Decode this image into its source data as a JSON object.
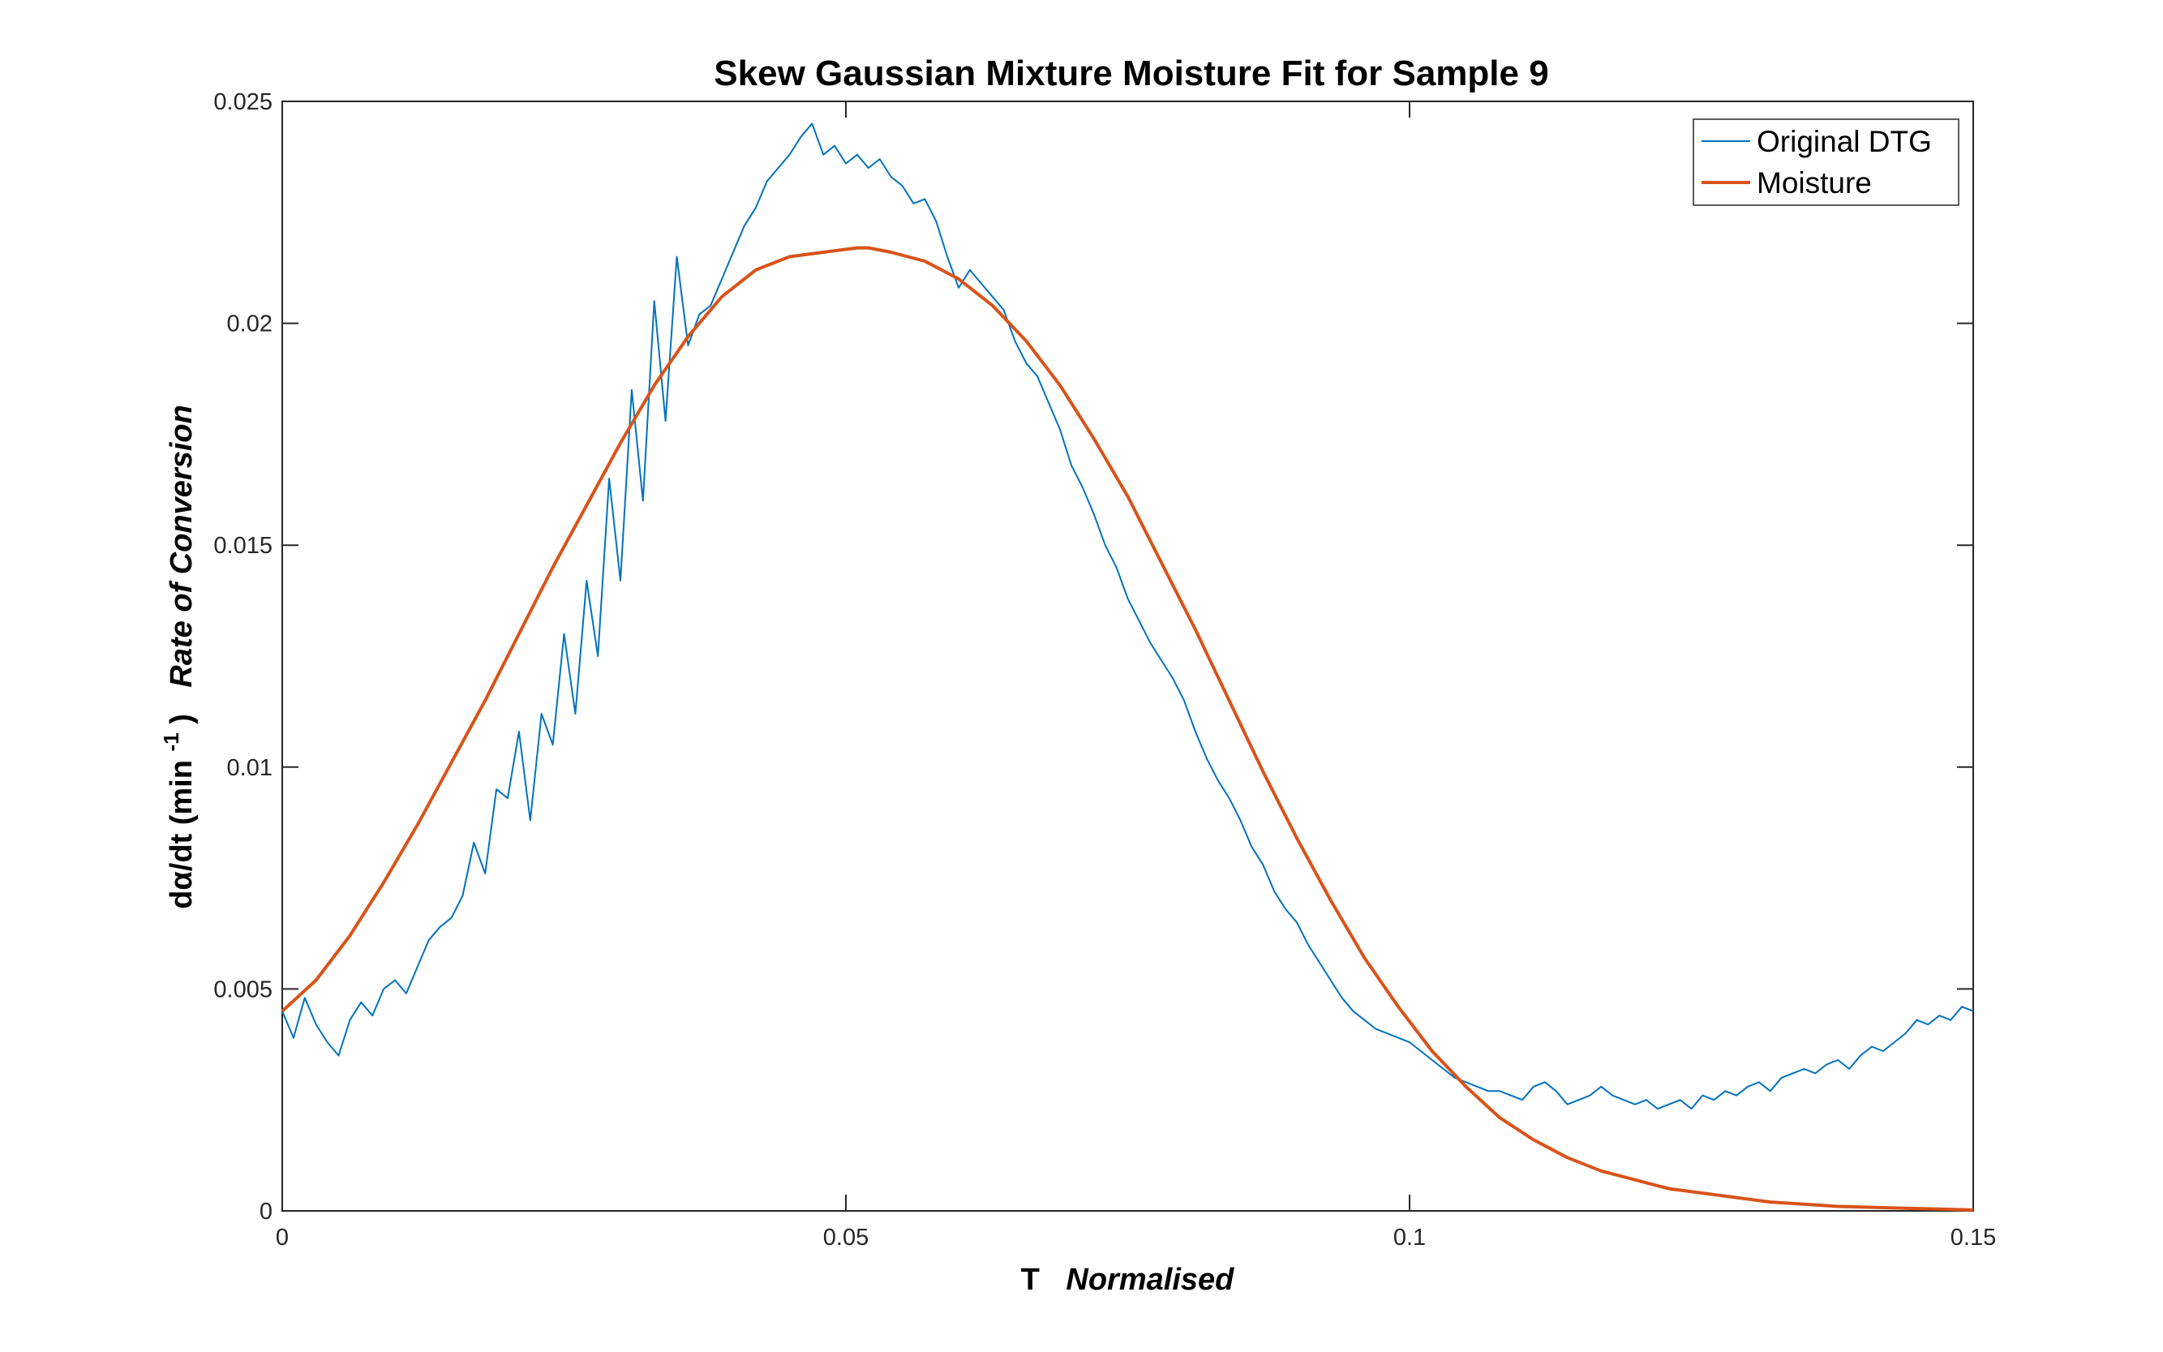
{
  "chart_data": {
    "type": "line",
    "title": "Skew Gaussian Mixture Moisture Fit for Sample 9",
    "xlabel": {
      "main": "T",
      "italic": "Normalised"
    },
    "ylabel": {
      "main": "dα/dt (min",
      "superscript": "-1",
      "close": ")",
      "italic": "Rate of Conversion"
    },
    "xlim": [
      0,
      0.15
    ],
    "ylim": [
      0,
      0.025
    ],
    "xticks": [
      0,
      0.05,
      0.1,
      0.15
    ],
    "xtick_labels": [
      "0",
      "0.05",
      "0.1",
      "0.15"
    ],
    "yticks": [
      0,
      0.005,
      0.01,
      0.015,
      0.02,
      0.025
    ],
    "ytick_labels": [
      "0",
      "0.005",
      "0.01",
      "0.015",
      "0.02",
      "0.025"
    ],
    "grid": false,
    "legend_position": "top-right",
    "series": [
      {
        "name": "Original DTG",
        "color": "#0072BD",
        "x": [
          0,
          0.001,
          0.002,
          0.003,
          0.004,
          0.005,
          0.006,
          0.007,
          0.008,
          0.009,
          0.01,
          0.011,
          0.012,
          0.013,
          0.014,
          0.015,
          0.016,
          0.017,
          0.018,
          0.019,
          0.02,
          0.021,
          0.022,
          0.023,
          0.024,
          0.025,
          0.026,
          0.027,
          0.028,
          0.029,
          0.03,
          0.031,
          0.032,
          0.033,
          0.034,
          0.035,
          0.036,
          0.037,
          0.038,
          0.039,
          0.04,
          0.041,
          0.042,
          0.043,
          0.044,
          0.045,
          0.046,
          0.047,
          0.048,
          0.049,
          0.05,
          0.051,
          0.052,
          0.053,
          0.054,
          0.055,
          0.056,
          0.057,
          0.058,
          0.059,
          0.06,
          0.061,
          0.062,
          0.063,
          0.064,
          0.065,
          0.066,
          0.067,
          0.068,
          0.069,
          0.07,
          0.071,
          0.072,
          0.073,
          0.074,
          0.075,
          0.076,
          0.077,
          0.078,
          0.079,
          0.08,
          0.081,
          0.082,
          0.083,
          0.084,
          0.085,
          0.086,
          0.087,
          0.088,
          0.089,
          0.09,
          0.091,
          0.092,
          0.093,
          0.094,
          0.095,
          0.096,
          0.097,
          0.098,
          0.099,
          0.1,
          0.101,
          0.102,
          0.103,
          0.104,
          0.105,
          0.106,
          0.107,
          0.108,
          0.109,
          0.11,
          0.111,
          0.112,
          0.113,
          0.114,
          0.115,
          0.116,
          0.117,
          0.118,
          0.119,
          0.12,
          0.121,
          0.122,
          0.123,
          0.124,
          0.125,
          0.126,
          0.127,
          0.128,
          0.129,
          0.13,
          0.131,
          0.132,
          0.133,
          0.134,
          0.135,
          0.136,
          0.137,
          0.138,
          0.139,
          0.14,
          0.141,
          0.142,
          0.143,
          0.144,
          0.145,
          0.146,
          0.147,
          0.148,
          0.149,
          0.15
        ],
        "y": [
          0.0045,
          0.0039,
          0.0048,
          0.0042,
          0.0038,
          0.0035,
          0.0043,
          0.0047,
          0.0044,
          0.005,
          0.0052,
          0.0049,
          0.0055,
          0.0061,
          0.0064,
          0.0066,
          0.0071,
          0.0083,
          0.0076,
          0.0095,
          0.0093,
          0.0108,
          0.0088,
          0.0112,
          0.0105,
          0.013,
          0.0112,
          0.0142,
          0.0125,
          0.0165,
          0.0142,
          0.0185,
          0.016,
          0.0205,
          0.0178,
          0.0215,
          0.0195,
          0.0202,
          0.0204,
          0.021,
          0.0216,
          0.0222,
          0.0226,
          0.0232,
          0.0235,
          0.0238,
          0.0242,
          0.0245,
          0.0238,
          0.024,
          0.0236,
          0.0238,
          0.0235,
          0.0237,
          0.0233,
          0.0231,
          0.0227,
          0.0228,
          0.0223,
          0.0215,
          0.0208,
          0.0212,
          0.0209,
          0.0206,
          0.0203,
          0.0196,
          0.0191,
          0.0188,
          0.0182,
          0.0176,
          0.0168,
          0.0163,
          0.0157,
          0.015,
          0.0145,
          0.0138,
          0.0133,
          0.0128,
          0.0124,
          0.012,
          0.0115,
          0.0108,
          0.0102,
          0.0097,
          0.0093,
          0.0088,
          0.0082,
          0.0078,
          0.0072,
          0.0068,
          0.0065,
          0.006,
          0.0056,
          0.0052,
          0.0048,
          0.0045,
          0.0043,
          0.0041,
          0.004,
          0.0039,
          0.0038,
          0.0036,
          0.0034,
          0.0032,
          0.003,
          0.0029,
          0.0028,
          0.0027,
          0.0027,
          0.0026,
          0.0025,
          0.0028,
          0.0029,
          0.0027,
          0.0024,
          0.0025,
          0.0026,
          0.0028,
          0.0026,
          0.0025,
          0.0024,
          0.0025,
          0.0023,
          0.0024,
          0.0025,
          0.0023,
          0.0026,
          0.0025,
          0.0027,
          0.0026,
          0.0028,
          0.0029,
          0.0027,
          0.003,
          0.0031,
          0.0032,
          0.0031,
          0.0033,
          0.0034,
          0.0032,
          0.0035,
          0.0037,
          0.0036,
          0.0038,
          0.004,
          0.0043,
          0.0042,
          0.0044,
          0.0043,
          0.0046,
          0.0045
        ]
      },
      {
        "name": "Moisture",
        "color": "#D95319",
        "x": [
          0,
          0.003,
          0.006,
          0.009,
          0.012,
          0.015,
          0.018,
          0.021,
          0.024,
          0.027,
          0.03,
          0.033,
          0.036,
          0.039,
          0.042,
          0.045,
          0.048,
          0.051,
          0.052,
          0.054,
          0.057,
          0.06,
          0.063,
          0.066,
          0.069,
          0.072,
          0.075,
          0.078,
          0.081,
          0.084,
          0.087,
          0.09,
          0.093,
          0.096,
          0.099,
          0.102,
          0.105,
          0.108,
          0.111,
          0.114,
          0.117,
          0.12,
          0.123,
          0.126,
          0.129,
          0.132,
          0.135,
          0.138,
          0.141,
          0.144,
          0.147,
          0.15
        ],
        "y": [
          0.0045,
          0.0052,
          0.0062,
          0.0074,
          0.0087,
          0.0101,
          0.0115,
          0.013,
          0.0145,
          0.0159,
          0.0173,
          0.0186,
          0.0197,
          0.0206,
          0.0212,
          0.0215,
          0.0216,
          0.0217,
          0.0217,
          0.0216,
          0.0214,
          0.021,
          0.0204,
          0.0196,
          0.0186,
          0.0174,
          0.0161,
          0.0146,
          0.0131,
          0.0115,
          0.0099,
          0.0084,
          0.007,
          0.0057,
          0.0046,
          0.0036,
          0.0028,
          0.0021,
          0.0016,
          0.0012,
          0.0009,
          0.0007,
          0.0005,
          0.0004,
          0.0003,
          0.0002,
          0.00015,
          0.0001,
          8e-05,
          6e-05,
          4e-05,
          2e-05
        ]
      }
    ]
  }
}
